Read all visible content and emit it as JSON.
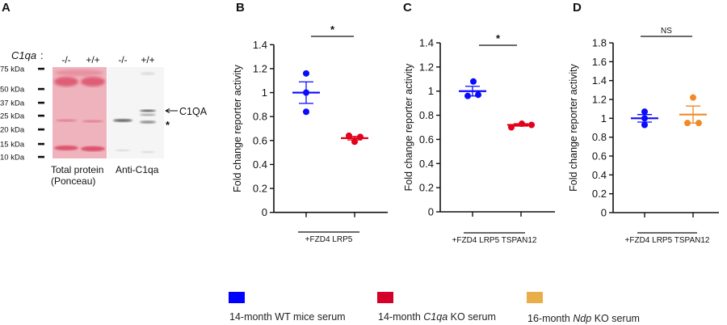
{
  "panel_letters": [
    "A",
    "B",
    "C",
    "D"
  ],
  "blot": {
    "genotype_label": "C1qa",
    "genotype_suffix": ":",
    "lanes": [
      "-/-",
      "+/+",
      "-/-",
      "+/+"
    ],
    "markers": [
      "75 kDa",
      "50 kDa",
      "37 kDa",
      "25 kDa",
      "20 kDa",
      "15 kDa",
      "10 kDa"
    ],
    "band_label": "C1QA",
    "nonspecific_mark": "*",
    "caption_left_line1": "Total protein",
    "caption_left_line2": "(Ponceau)",
    "caption_right": "Anti-C1qa",
    "ponceau_color": "#e89aa6",
    "band_color": "#d9435e"
  },
  "chart_data": [
    {
      "type": "scatter",
      "panel": "B",
      "ylabel": "Fold change reporter activity",
      "xlabel": "+FZD4 LRP5",
      "ylim": [
        0,
        1.4
      ],
      "yticks": [
        "0",
        "0.2",
        "0.4",
        "0.6",
        "0.8",
        "1",
        "1.2",
        "1.4"
      ],
      "significance": "*",
      "groups": [
        {
          "series": "wt",
          "points": [
            1.16,
            1.0,
            0.84
          ],
          "mean": 1.0,
          "sem": 0.09
        },
        {
          "series": "c1qa",
          "points": [
            0.64,
            0.59,
            0.63
          ],
          "mean": 0.62,
          "sem": 0.015
        }
      ]
    },
    {
      "type": "scatter",
      "panel": "C",
      "ylabel": "Fold change reporter activity",
      "xlabel": "+FZD4 LRP5 TSPAN12",
      "ylim": [
        0,
        1.4
      ],
      "yticks": [
        "0",
        "0.2",
        "0.4",
        "0.6",
        "0.8",
        "1",
        "1.2",
        "1.4"
      ],
      "significance": "*",
      "groups": [
        {
          "series": "wt",
          "points": [
            0.96,
            1.08,
            0.97
          ],
          "mean": 1.0,
          "sem": 0.04
        },
        {
          "series": "c1qa",
          "points": [
            0.7,
            0.73,
            0.72
          ],
          "mean": 0.72,
          "sem": 0.01
        }
      ]
    },
    {
      "type": "scatter",
      "panel": "D",
      "ylabel": "Fold change reporter activity",
      "xlabel": "+FZD4 LRP5 TSPAN12",
      "ylim": [
        0,
        1.8
      ],
      "yticks": [
        "0",
        "0.2",
        "0.4",
        "0.6",
        "0.8",
        "1",
        "1.2",
        "1.4",
        "1.6",
        "1.8"
      ],
      "significance": "NS",
      "groups": [
        {
          "series": "wt",
          "points": [
            1.07,
            1.0,
            0.93
          ],
          "mean": 1.0,
          "sem": 0.04
        },
        {
          "series": "ndp",
          "points": [
            0.95,
            1.22,
            0.95
          ],
          "mean": 1.04,
          "sem": 0.09
        }
      ]
    }
  ],
  "series": {
    "wt": {
      "color": "#0a0aff",
      "legend_color": "#0000ff"
    },
    "c1qa": {
      "color": "#e3001b",
      "legend_color": "#d4002a"
    },
    "ndp": {
      "color": "#ef8a25",
      "legend_color": "#e8ae4a"
    }
  },
  "legend": [
    {
      "series": "wt",
      "pre": "14-month WT mice serum",
      "italic": "",
      "post": ""
    },
    {
      "series": "c1qa",
      "pre": "14-month ",
      "italic": "C1qa",
      "post": " KO serum"
    },
    {
      "series": "ndp",
      "pre": "16-month ",
      "italic": "Ndp",
      "post": " KO serum"
    }
  ]
}
